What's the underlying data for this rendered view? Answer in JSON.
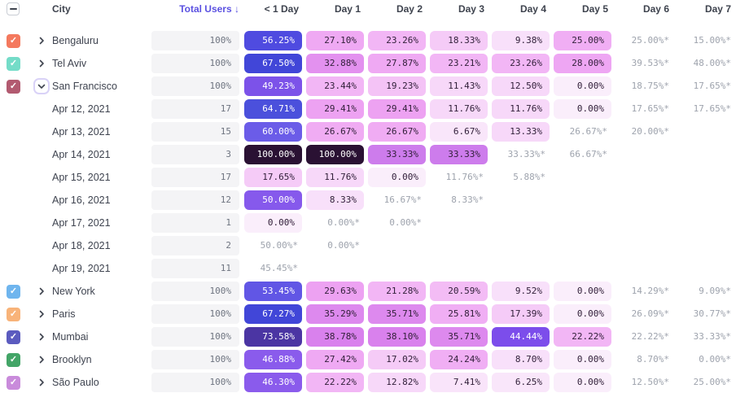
{
  "colors": {
    "accent_sorted_header": "#5B51E1",
    "header_text": "#3E434E",
    "row_label_text": "#3F4450",
    "muted_estimate_text": "#9EA3AD",
    "total_bar_bg": "#F4F4F6",
    "cell_dark_text": "#32203A",
    "cell_light_text": "#FFFFFF"
  },
  "header": {
    "columns": [
      {
        "label": "City"
      },
      {
        "label": "Total Users ↓",
        "sorted": true
      },
      {
        "label": "< 1 Day"
      },
      {
        "label": "Day 1"
      },
      {
        "label": "Day 2"
      },
      {
        "label": "Day 3"
      },
      {
        "label": "Day 4"
      },
      {
        "label": "Day 5"
      },
      {
        "label": "Day 6"
      },
      {
        "label": "Day 7"
      }
    ]
  },
  "rows": [
    {
      "kind": "city",
      "label": "Bengaluru",
      "checkbox": "#F4795E",
      "expanded": false,
      "total": "100%",
      "cells": [
        {
          "v": "56.25%",
          "bg": "#4F4BE0",
          "light": true
        },
        {
          "v": "27.10%",
          "bg": "#EFA9F3"
        },
        {
          "v": "23.26%",
          "bg": "#F2B6F5"
        },
        {
          "v": "18.33%",
          "bg": "#F5CBF7"
        },
        {
          "v": "9.38%",
          "bg": "#F8E0FA"
        },
        {
          "v": "25.00%",
          "bg": "#F0AEF4"
        },
        {
          "v": "25.00%*",
          "muted": true
        },
        {
          "v": "15.00%*",
          "muted": true
        }
      ]
    },
    {
      "kind": "city",
      "label": "Tel Aviv",
      "checkbox": "#74DCC8",
      "expanded": false,
      "total": "100%",
      "cells": [
        {
          "v": "67.50%",
          "bg": "#4146D8",
          "light": true
        },
        {
          "v": "32.88%",
          "bg": "#E391EF"
        },
        {
          "v": "27.87%",
          "bg": "#EFA9F3"
        },
        {
          "v": "23.21%",
          "bg": "#F2B6F5"
        },
        {
          "v": "23.26%",
          "bg": "#F2B6F5"
        },
        {
          "v": "28.00%",
          "bg": "#EEA6F3"
        },
        {
          "v": "39.53%*",
          "muted": true
        },
        {
          "v": "48.00%*",
          "muted": true
        }
      ]
    },
    {
      "kind": "city",
      "label": "San Francisco",
      "checkbox": "#B25A70",
      "expanded": true,
      "total": "100%",
      "cells": [
        {
          "v": "49.23%",
          "bg": "#7C52E9",
          "light": true
        },
        {
          "v": "23.44%",
          "bg": "#F2B6F5"
        },
        {
          "v": "19.23%",
          "bg": "#F4C3F6"
        },
        {
          "v": "11.43%",
          "bg": "#F7D8F9"
        },
        {
          "v": "12.50%",
          "bg": "#F7D8F9"
        },
        {
          "v": "0.00%",
          "bg": "#FAEEFB"
        },
        {
          "v": "18.75%*",
          "muted": true
        },
        {
          "v": "17.65%*",
          "muted": true
        }
      ]
    },
    {
      "kind": "date",
      "label": "Apr 12, 2021",
      "total": "17",
      "cells": [
        {
          "v": "64.71%",
          "bg": "#4B50DC",
          "light": true
        },
        {
          "v": "29.41%",
          "bg": "#EDA2F2"
        },
        {
          "v": "29.41%",
          "bg": "#EDA2F2"
        },
        {
          "v": "11.76%",
          "bg": "#F7D8F9"
        },
        {
          "v": "11.76%",
          "bg": "#F7D8F9"
        },
        {
          "v": "0.00%",
          "bg": "#FAEEFB"
        },
        {
          "v": "17.65%*",
          "muted": true
        },
        {
          "v": "17.65%*",
          "muted": true
        }
      ]
    },
    {
      "kind": "date",
      "label": "Apr 13, 2021",
      "total": "15",
      "cells": [
        {
          "v": "60.00%",
          "bg": "#6B5CE8",
          "light": true
        },
        {
          "v": "26.67%",
          "bg": "#F0ACF3"
        },
        {
          "v": "26.67%",
          "bg": "#F0ACF3"
        },
        {
          "v": "6.67%",
          "bg": "#F9E6FA"
        },
        {
          "v": "13.33%",
          "bg": "#F7D8F9"
        },
        {
          "v": "26.67%*",
          "muted": true
        },
        {
          "v": "20.00%*",
          "muted": true
        },
        null
      ]
    },
    {
      "kind": "date",
      "label": "Apr 14, 2021",
      "total": "3",
      "cells": [
        {
          "v": "100.00%",
          "bg": "#2A1133",
          "light": true
        },
        {
          "v": "100.00%",
          "bg": "#2A1133",
          "light": true
        },
        {
          "v": "33.33%",
          "bg": "#CD7CEC"
        },
        {
          "v": "33.33%",
          "bg": "#CD7CEC"
        },
        {
          "v": "33.33%*",
          "muted": true
        },
        {
          "v": "66.67%*",
          "muted": true
        },
        null,
        null
      ]
    },
    {
      "kind": "date",
      "label": "Apr 15, 2021",
      "total": "17",
      "cells": [
        {
          "v": "17.65%",
          "bg": "#F5CBF7"
        },
        {
          "v": "11.76%",
          "bg": "#F7D8F9"
        },
        {
          "v": "0.00%",
          "bg": "#FAEEFB"
        },
        {
          "v": "11.76%*",
          "muted": true
        },
        {
          "v": "5.88%*",
          "muted": true
        },
        null,
        null,
        null
      ]
    },
    {
      "kind": "date",
      "label": "Apr 16, 2021",
      "total": "12",
      "cells": [
        {
          "v": "50.00%",
          "bg": "#8659EC",
          "light": true
        },
        {
          "v": "8.33%",
          "bg": "#F8E0FA"
        },
        {
          "v": "16.67%*",
          "muted": true
        },
        {
          "v": "8.33%*",
          "muted": true
        },
        null,
        null,
        null,
        null
      ]
    },
    {
      "kind": "date",
      "label": "Apr 17, 2021",
      "total": "1",
      "cells": [
        {
          "v": "0.00%",
          "bg": "#FAEEFB"
        },
        {
          "v": "0.00%*",
          "muted": true
        },
        {
          "v": "0.00%*",
          "muted": true
        },
        null,
        null,
        null,
        null,
        null
      ]
    },
    {
      "kind": "date",
      "label": "Apr 18, 2021",
      "total": "2",
      "cells": [
        {
          "v": "50.00%*",
          "muted": true
        },
        {
          "v": "0.00%*",
          "muted": true
        },
        null,
        null,
        null,
        null,
        null,
        null
      ]
    },
    {
      "kind": "date",
      "label": "Apr 19, 2021",
      "total": "11",
      "cells": [
        {
          "v": "45.45%*",
          "muted": true
        },
        null,
        null,
        null,
        null,
        null,
        null,
        null
      ]
    },
    {
      "kind": "city",
      "label": "New York",
      "checkbox": "#6FB5EE",
      "expanded": false,
      "total": "100%",
      "cells": [
        {
          "v": "53.45%",
          "bg": "#6156E5",
          "light": true
        },
        {
          "v": "29.63%",
          "bg": "#EDA2F2"
        },
        {
          "v": "21.28%",
          "bg": "#F2B6F5"
        },
        {
          "v": "20.59%",
          "bg": "#F3BCF5"
        },
        {
          "v": "9.52%",
          "bg": "#F8E0FA"
        },
        {
          "v": "0.00%",
          "bg": "#FAEEFB"
        },
        {
          "v": "14.29%*",
          "muted": true
        },
        {
          "v": "9.09%*",
          "muted": true
        }
      ]
    },
    {
      "kind": "city",
      "label": "Paris",
      "checkbox": "#F8B379",
      "expanded": false,
      "total": "100%",
      "cells": [
        {
          "v": "67.27%",
          "bg": "#4146D8",
          "light": true
        },
        {
          "v": "35.29%",
          "bg": "#DD89EE"
        },
        {
          "v": "35.71%",
          "bg": "#DD89EE"
        },
        {
          "v": "25.81%",
          "bg": "#F0AEF4"
        },
        {
          "v": "17.39%",
          "bg": "#F5CBF7"
        },
        {
          "v": "0.00%",
          "bg": "#FAEEFB"
        },
        {
          "v": "26.09%*",
          "muted": true
        },
        {
          "v": "30.77%*",
          "muted": true
        }
      ]
    },
    {
      "kind": "city",
      "label": "Mumbai",
      "checkbox": "#5B5BBF",
      "expanded": false,
      "total": "100%",
      "cells": [
        {
          "v": "73.58%",
          "bg": "#4B35A3",
          "light": true
        },
        {
          "v": "38.78%",
          "bg": "#D981ED"
        },
        {
          "v": "38.10%",
          "bg": "#D981ED"
        },
        {
          "v": "35.71%",
          "bg": "#DD89EE"
        },
        {
          "v": "44.44%",
          "bg": "#7C4DEB",
          "light": true
        },
        {
          "v": "22.22%",
          "bg": "#F2B6F5"
        },
        {
          "v": "22.22%*",
          "muted": true
        },
        {
          "v": "33.33%*",
          "muted": true
        }
      ]
    },
    {
      "kind": "city",
      "label": "Brooklyn",
      "checkbox": "#43A567",
      "expanded": false,
      "total": "100%",
      "cells": [
        {
          "v": "46.88%",
          "bg": "#8A5BEC",
          "light": true
        },
        {
          "v": "27.42%",
          "bg": "#EFA9F3"
        },
        {
          "v": "17.02%",
          "bg": "#F5CBF7"
        },
        {
          "v": "24.24%",
          "bg": "#F0AEF4"
        },
        {
          "v": "8.70%",
          "bg": "#F8E0FA"
        },
        {
          "v": "0.00%",
          "bg": "#FAEEFB"
        },
        {
          "v": "8.70%*",
          "muted": true
        },
        {
          "v": "0.00%*",
          "muted": true
        }
      ]
    },
    {
      "kind": "city",
      "label": "São Paulo",
      "checkbox": "#C98BDB",
      "expanded": false,
      "total": "100%",
      "cells": [
        {
          "v": "46.30%",
          "bg": "#8A5BEC",
          "light": true
        },
        {
          "v": "22.22%",
          "bg": "#F2B6F5"
        },
        {
          "v": "12.82%",
          "bg": "#F7D8F9"
        },
        {
          "v": "7.41%",
          "bg": "#F9E4FA"
        },
        {
          "v": "6.25%",
          "bg": "#F9E6FA"
        },
        {
          "v": "0.00%",
          "bg": "#FAEEFB"
        },
        {
          "v": "12.50%*",
          "muted": true
        },
        {
          "v": "25.00%*",
          "muted": true
        }
      ]
    }
  ]
}
